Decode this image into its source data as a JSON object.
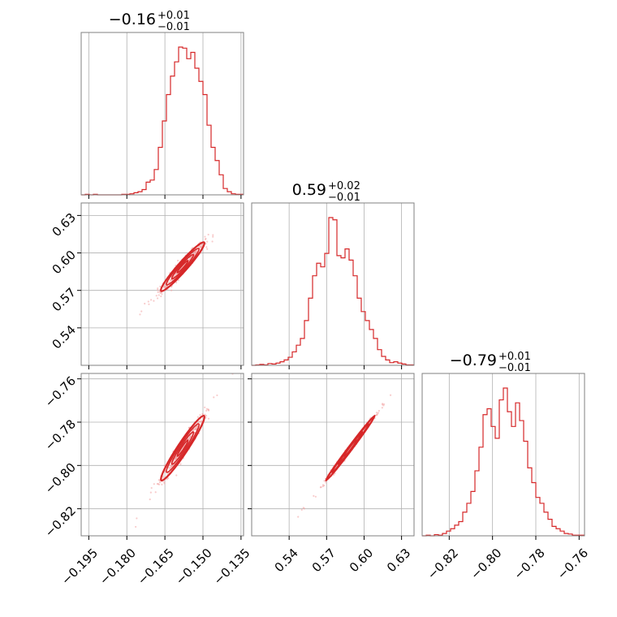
{
  "colors": {
    "series": "#d62728",
    "scatter": "#f2a3a3",
    "grid": "#b0b0b0",
    "frame": "#808080"
  },
  "chart_data": {
    "type": "corner",
    "grid": true,
    "parameters": [
      {
        "title_main": "−0.16",
        "title_plus": "+0.01",
        "title_minus": "−0.01",
        "range": [
          -0.198,
          -0.134
        ],
        "ticks": [
          -0.195,
          -0.18,
          -0.165,
          -0.15,
          -0.135
        ],
        "tick_labels": [
          "−0.195",
          "−0.180",
          "−0.165",
          "−0.150",
          "−0.135"
        ],
        "hist_bin_start": -0.198,
        "hist_bin_width": 0.0016,
        "hist_counts": [
          0,
          1,
          0,
          1,
          0,
          0,
          0,
          0,
          0,
          0,
          1,
          1,
          2,
          4,
          6,
          10,
          24,
          28,
          48,
          90,
          140,
          190,
          225,
          252,
          280,
          278,
          258,
          270,
          240,
          215,
          190,
          132,
          90,
          65,
          38,
          12,
          6,
          2,
          1,
          1
        ]
      },
      {
        "title_main": "0.59",
        "title_plus": "+0.02",
        "title_minus": "−0.01",
        "range": [
          0.51,
          0.64
        ],
        "ticks": [
          0.54,
          0.57,
          0.6,
          0.63
        ],
        "tick_labels": [
          "0.54",
          "0.57",
          "0.60",
          "0.63"
        ],
        "hist_bin_start": 0.51,
        "hist_bin_width": 0.00325,
        "hist_counts": [
          0,
          1,
          2,
          1,
          4,
          3,
          5,
          8,
          12,
          18,
          30,
          45,
          60,
          100,
          150,
          200,
          228,
          220,
          250,
          330,
          325,
          245,
          240,
          260,
          235,
          200,
          150,
          120,
          100,
          80,
          60,
          35,
          20,
          12,
          6,
          8,
          5,
          3,
          1,
          1
        ]
      },
      {
        "title_main": "−0.79",
        "title_plus": "+0.01",
        "title_minus": "−0.01",
        "range": [
          -0.8325,
          -0.7575
        ],
        "ticks": [
          -0.82,
          -0.8,
          -0.78,
          -0.76
        ],
        "tick_labels": [
          "−0.82",
          "−0.80",
          "−0.78",
          "−0.76"
        ],
        "hist_bin_start": -0.8325,
        "hist_bin_width": 0.001875,
        "hist_counts": [
          0,
          1,
          0,
          2,
          1,
          4,
          8,
          12,
          18,
          24,
          40,
          55,
          75,
          110,
          150,
          205,
          215,
          185,
          165,
          230,
          250,
          210,
          185,
          225,
          195,
          160,
          115,
          90,
          65,
          55,
          40,
          28,
          16,
          12,
          8,
          4,
          3,
          1,
          1,
          1
        ]
      }
    ],
    "correlations": {
      "1-0": 0.96,
      "2-0": 0.96,
      "2-1": 0.995
    },
    "center": [
      -0.158,
      0.589,
      -0.792
    ],
    "spread": [
      0.0043,
      0.0098,
      0.0075
    ]
  }
}
